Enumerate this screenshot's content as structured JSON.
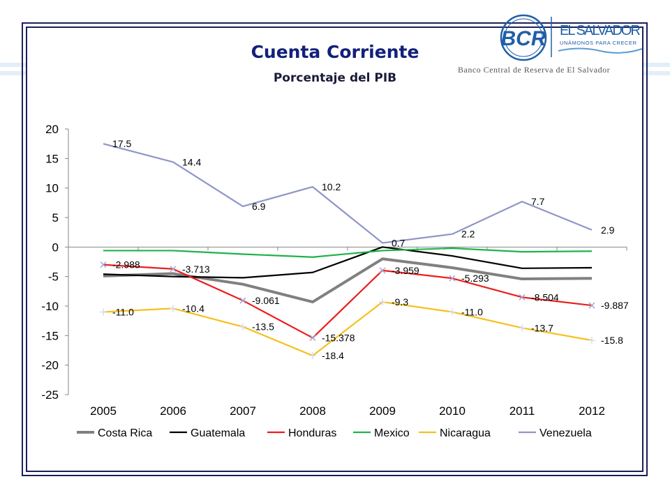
{
  "header": {
    "title": "Cuenta Corriente",
    "subtitle": "Porcentaje del PIB"
  },
  "logo": {
    "monogram": "BCR",
    "country": "EL SALVADOR",
    "tagline": "UNÁMONOS PARA CRECER",
    "bank_name": "Banco Central de Reserva de El Salvador",
    "color": "#1f5fa8"
  },
  "chart_data": {
    "type": "line",
    "title": "",
    "xlabel": "",
    "ylabel": "",
    "x": [
      "2005",
      "2006",
      "2007",
      "2008",
      "2009",
      "2010",
      "2011",
      "2012"
    ],
    "ylim": [
      -25,
      20
    ],
    "yticks": [
      "20",
      "15",
      "10",
      "5",
      "0",
      "-5",
      "-10",
      "-15",
      "-20",
      "-25"
    ],
    "grid": false,
    "legend_position": "bottom",
    "series": [
      {
        "name": "Costa Rica",
        "color": "#808080",
        "width": 4,
        "marker": "none",
        "values": [
          -4.9,
          -4.5,
          -6.3,
          -9.3,
          -2.0,
          -3.5,
          -5.4,
          -5.3
        ],
        "labels": null
      },
      {
        "name": "Guatemala",
        "color": "#000000",
        "width": 2.2,
        "marker": "none",
        "values": [
          -4.6,
          -5.0,
          -5.2,
          -4.3,
          0.0,
          -1.5,
          -3.6,
          -3.5
        ],
        "labels": null
      },
      {
        "name": "Honduras",
        "color": "#ee1c1c",
        "width": 2.2,
        "marker": "x",
        "values": [
          -2.988,
          -3.713,
          -9.061,
          -15.378,
          -3.959,
          -5.293,
          -8.504,
          -9.887
        ],
        "labels": [
          "-2.988",
          "-3.713",
          "-9.061",
          "-15.378",
          "-3.959",
          "-5.293",
          "-8.504",
          "-9.887"
        ]
      },
      {
        "name": "Mexico",
        "color": "#1db34a",
        "width": 2.2,
        "marker": "none",
        "values": [
          -0.6,
          -0.6,
          -1.2,
          -1.7,
          -0.6,
          -0.2,
          -0.8,
          -0.7
        ],
        "labels": null
      },
      {
        "name": "Nicaragua",
        "color": "#f5c01b",
        "width": 2.2,
        "marker": "plus",
        "values": [
          -11.0,
          -10.4,
          -13.5,
          -18.4,
          -9.3,
          -11.0,
          -13.7,
          -15.8
        ],
        "labels": [
          "-11.0",
          "-10.4",
          "-13.5",
          "-18.4",
          "-9.3",
          "-11.0",
          "-13.7",
          "-15.8"
        ]
      },
      {
        "name": "Venezuela",
        "color": "#8e95c8",
        "width": 2.2,
        "marker": "none",
        "values": [
          17.5,
          14.4,
          6.9,
          10.2,
          0.7,
          2.2,
          7.7,
          2.9
        ],
        "labels": [
          "17.5",
          "14.4",
          "6.9",
          "10.2",
          "0.7",
          "2.2",
          "7.7",
          "2.9"
        ]
      }
    ]
  }
}
